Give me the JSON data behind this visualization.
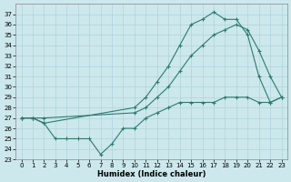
{
  "xlabel": "Humidex (Indice chaleur)",
  "xlim": [
    -0.5,
    23.5
  ],
  "ylim": [
    23,
    38
  ],
  "yticks": [
    23,
    24,
    25,
    26,
    27,
    28,
    29,
    30,
    31,
    32,
    33,
    34,
    35,
    36,
    37
  ],
  "xticks": [
    0,
    1,
    2,
    3,
    4,
    5,
    6,
    7,
    8,
    9,
    10,
    11,
    12,
    13,
    14,
    15,
    16,
    17,
    18,
    19,
    20,
    21,
    22,
    23
  ],
  "bg_color": "#cce8ec",
  "line_color": "#2d7b6e",
  "grid_color": "#afd4d8",
  "line1_x": [
    0,
    1,
    2,
    10,
    11,
    12,
    13,
    14,
    15,
    16,
    17,
    18,
    19,
    20,
    21,
    22,
    23
  ],
  "line1_y": [
    27,
    27,
    26.5,
    28,
    29,
    30.5,
    32,
    34,
    36,
    36.5,
    37.2,
    36.5,
    36.5,
    35,
    31,
    28.5,
    29
  ],
  "line2_x": [
    0,
    1,
    2,
    10,
    11,
    12,
    13,
    14,
    15,
    16,
    17,
    18,
    19,
    20,
    21,
    22,
    23
  ],
  "line2_y": [
    27,
    27,
    27,
    27.5,
    28,
    29,
    30,
    31.5,
    33,
    34,
    35,
    35.5,
    36,
    35.5,
    33.5,
    31,
    29
  ],
  "line3_x": [
    0,
    1,
    2,
    3,
    4,
    5,
    6,
    7,
    8,
    9,
    10,
    11,
    12,
    13,
    14,
    15,
    16,
    17,
    18,
    19,
    20,
    21,
    22,
    23
  ],
  "line3_y": [
    27,
    27,
    26.5,
    25,
    25,
    25,
    25,
    23.5,
    24.5,
    26,
    26,
    27,
    27.5,
    28,
    28.5,
    28.5,
    28.5,
    28.5,
    29,
    29,
    29,
    28.5,
    28.5,
    29
  ]
}
